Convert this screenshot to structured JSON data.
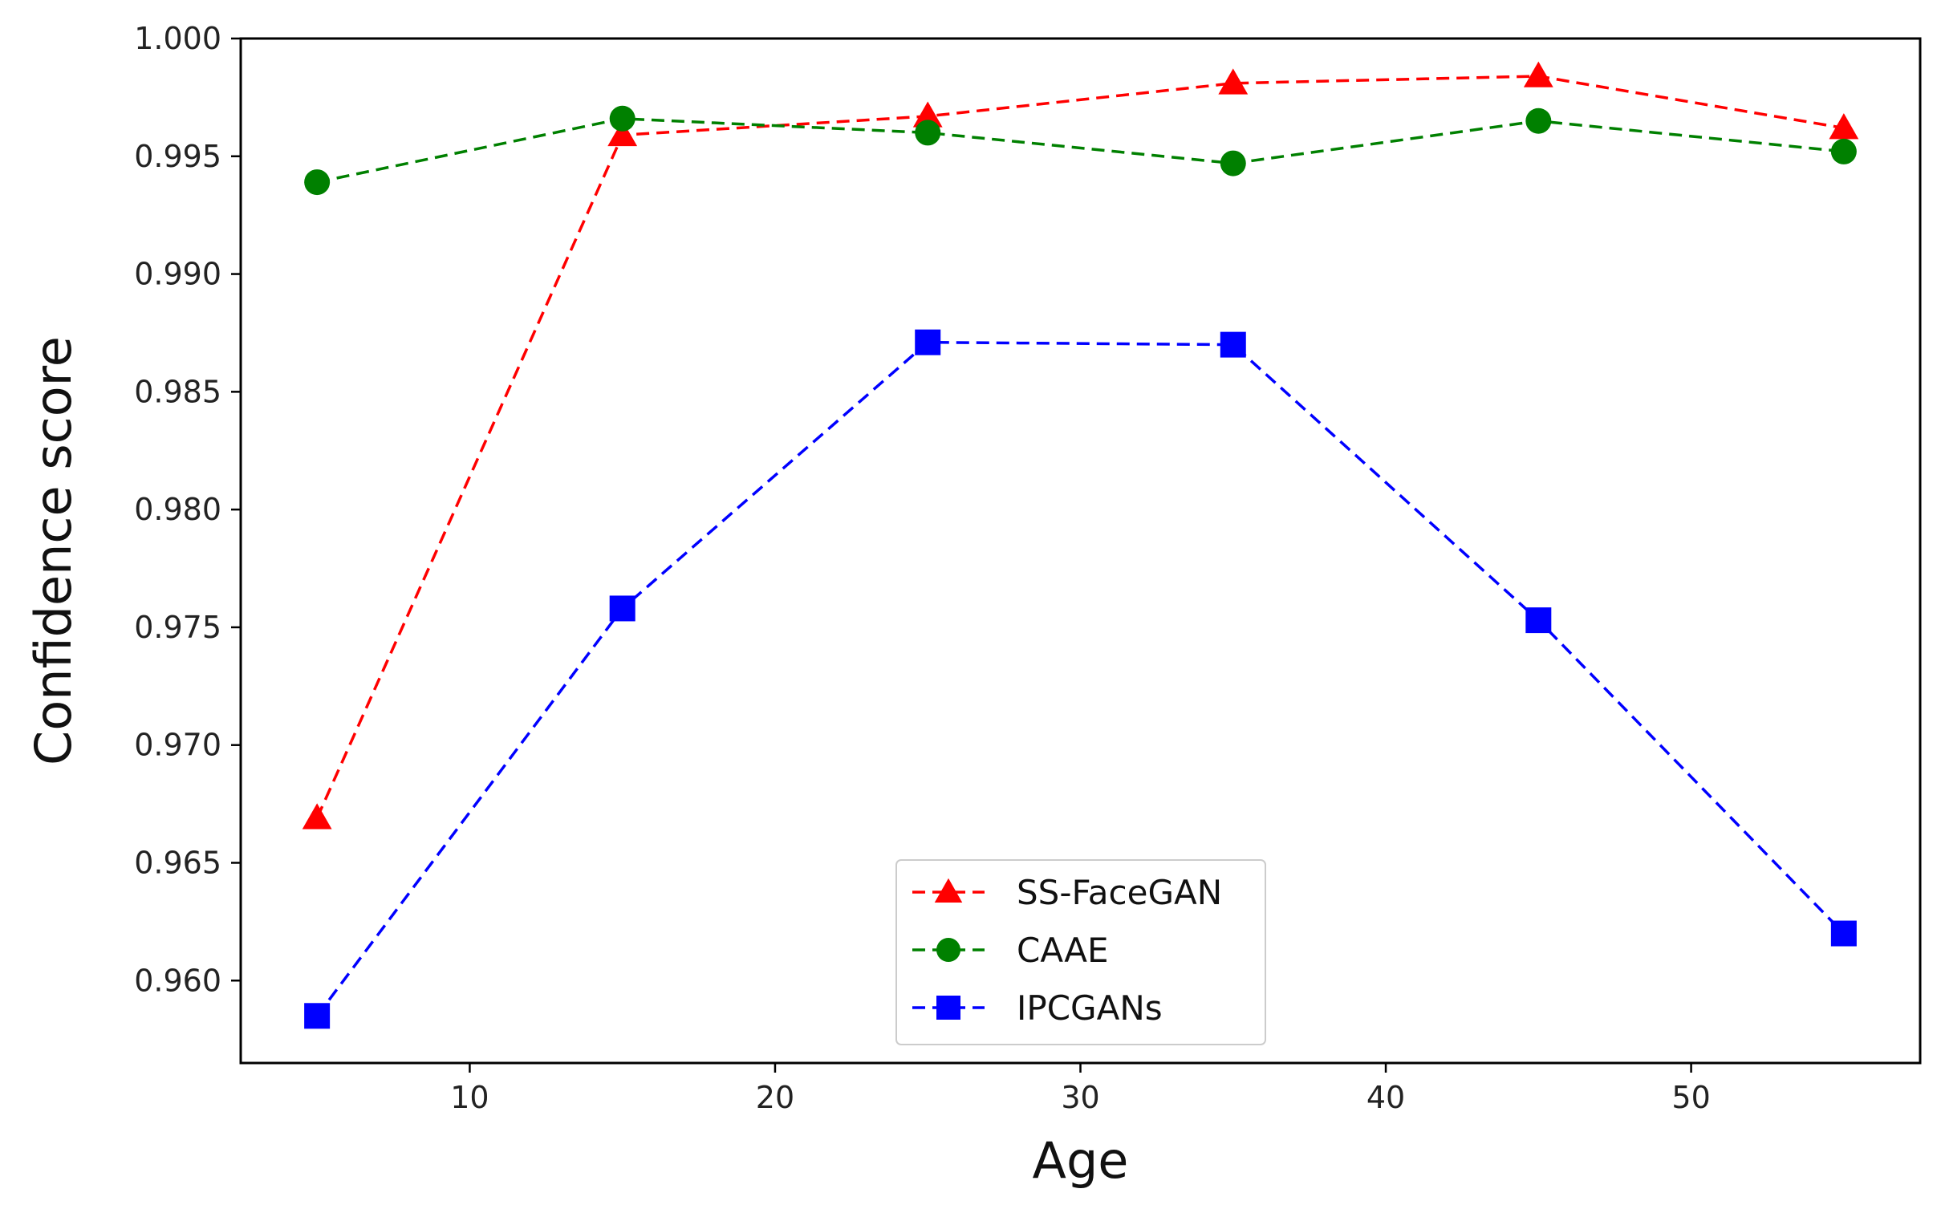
{
  "chart_data": {
    "type": "line",
    "title": "",
    "xlabel": "Age",
    "ylabel": "Confidence score",
    "x": [
      5,
      15,
      25,
      35,
      45,
      55
    ],
    "xlim": [
      2.5,
      57.5
    ],
    "ylim": [
      0.9565,
      1.0
    ],
    "xticks": [
      10,
      20,
      30,
      40,
      50
    ],
    "xtick_labels": [
      "10",
      "20",
      "30",
      "40",
      "50"
    ],
    "yticks": [
      0.96,
      0.965,
      0.97,
      0.975,
      0.98,
      0.985,
      0.99,
      0.995,
      1.0
    ],
    "ytick_labels": [
      "0.960",
      "0.965",
      "0.970",
      "0.975",
      "0.980",
      "0.985",
      "0.990",
      "0.995",
      "1.000"
    ],
    "grid": false,
    "legend_position": "bottom-center",
    "series": [
      {
        "name": "SS-FaceGAN",
        "color": "#ff0000",
        "marker": "triangle",
        "values": [
          0.9669,
          0.9959,
          0.9967,
          0.9981,
          0.9984,
          0.9962
        ]
      },
      {
        "name": "CAAE",
        "color": "#008000",
        "marker": "circle",
        "values": [
          0.9939,
          0.9966,
          0.996,
          0.9947,
          0.9965,
          0.9952
        ]
      },
      {
        "name": "IPCGANs",
        "color": "#0000ff",
        "marker": "square",
        "values": [
          0.9585,
          0.9758,
          0.9871,
          0.987,
          0.9753,
          0.962
        ]
      }
    ]
  }
}
